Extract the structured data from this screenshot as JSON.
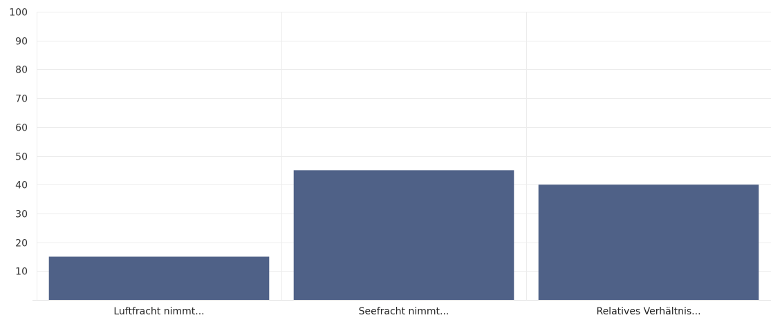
{
  "chart_data": {
    "type": "bar",
    "categories": [
      "Luftfracht nimmt...",
      "Seefracht nimmt...",
      "Relatives Verhältnis..."
    ],
    "values": [
      15,
      45,
      40
    ],
    "ylim": [
      0,
      100
    ],
    "yticks": [
      10,
      20,
      30,
      40,
      50,
      60,
      70,
      80,
      90,
      100
    ],
    "grid": true,
    "legend": "none",
    "title": "",
    "xlabel": "",
    "ylabel": "",
    "bar_color": "#4f6187",
    "grid_color": "#ececec"
  }
}
